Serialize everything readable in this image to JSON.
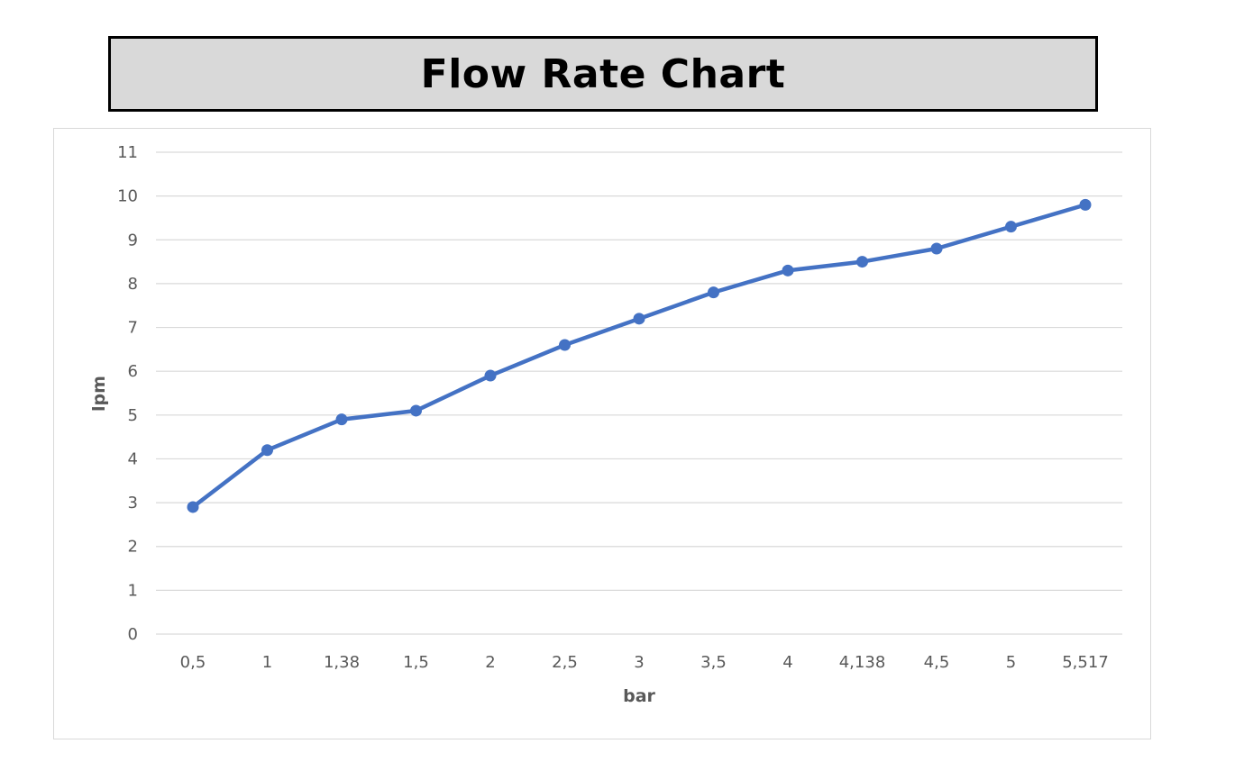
{
  "title": "Flow Rate Chart",
  "colors": {
    "series": "#4472c4",
    "grid": "#d9d9d9",
    "text": "#595959",
    "title_bg": "#d9d9d9"
  },
  "chart_data": {
    "type": "line",
    "title": "Flow Rate Chart",
    "xlabel": "bar",
    "ylabel": "lpm",
    "categories": [
      "0,5",
      "1",
      "1,38",
      "1,5",
      "2",
      "2,5",
      "3",
      "3,5",
      "4",
      "4,138",
      "4,5",
      "5",
      "5,517"
    ],
    "series": [
      {
        "values": [
          2.9,
          4.2,
          4.9,
          5.1,
          5.9,
          6.6,
          7.2,
          7.8,
          8.3,
          8.5,
          8.8,
          9.3,
          9.8
        ]
      }
    ],
    "ylim": [
      0,
      11
    ],
    "yticks": [
      0,
      1,
      2,
      3,
      4,
      5,
      6,
      7,
      8,
      9,
      10,
      11
    ],
    "grid": true,
    "legend": "none",
    "markers": true
  }
}
